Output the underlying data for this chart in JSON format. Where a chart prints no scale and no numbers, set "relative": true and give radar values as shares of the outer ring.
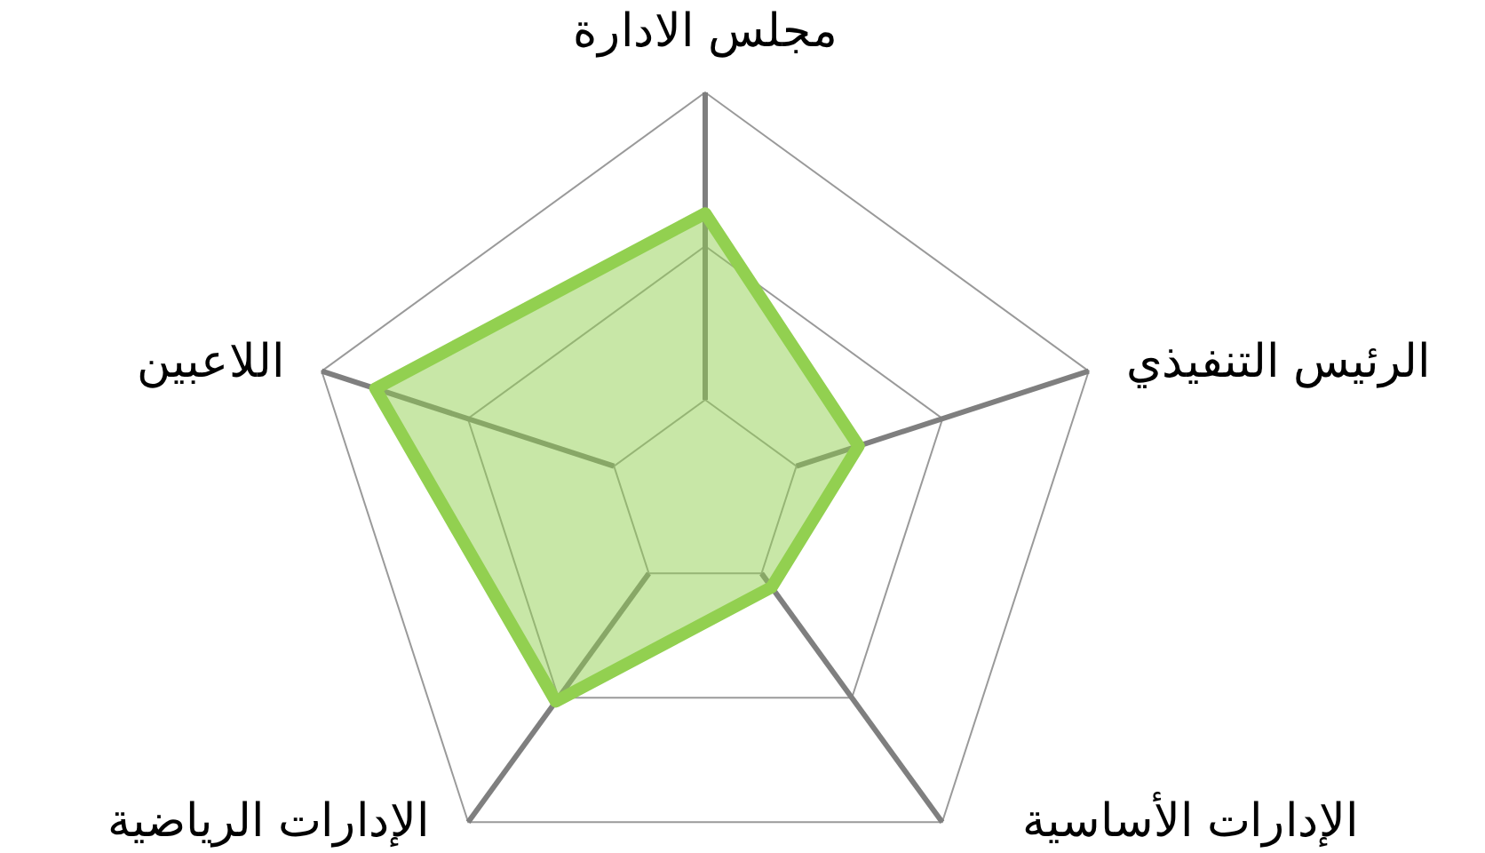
{
  "chart_data": {
    "type": "radar",
    "relative": true,
    "grid": true,
    "categories": [
      "مجلس الادارة",
      "الرئيس التنفيذي",
      "الإدارات الأساسية",
      "الإدارات الرياضية",
      "اللاعبين"
    ],
    "series": [
      {
        "color": "#92d050",
        "values": [
          0.7,
          0.4,
          0.28,
          0.63,
          0.86
        ]
      }
    ]
  }
}
